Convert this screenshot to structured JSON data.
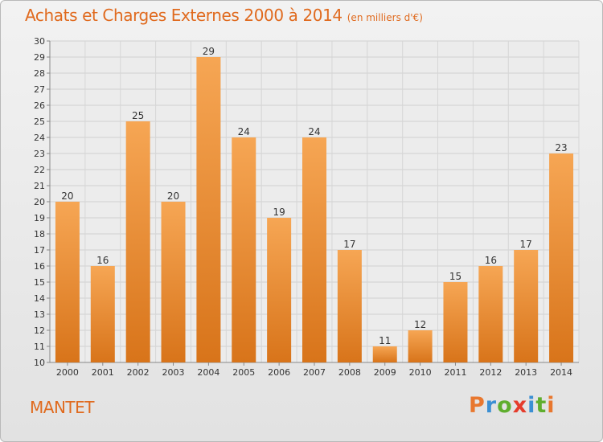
{
  "header": {
    "title": "Achats et Charges Externes 2000 à 2014",
    "subtitle": "(en milliers d'€)"
  },
  "footer": {
    "commune": "MANTET",
    "brand": "Proxiti"
  },
  "colors": {
    "bar_light": "#f6a654",
    "bar_dark": "#d8741a",
    "title": "#e06a1e",
    "brand_letters": [
      "#e8772e",
      "#3b8fd3",
      "#5fae2e",
      "#e53c2c",
      "#3b8fd3",
      "#5fae2e",
      "#e8772e"
    ]
  },
  "chart_data": {
    "type": "bar",
    "categories": [
      "2000",
      "2001",
      "2002",
      "2003",
      "2004",
      "2005",
      "2006",
      "2007",
      "2008",
      "2009",
      "2010",
      "2011",
      "2012",
      "2013",
      "2014"
    ],
    "values": [
      20,
      16,
      25,
      20,
      29,
      24,
      19,
      24,
      17,
      11,
      12,
      15,
      16,
      17,
      23
    ],
    "ylim": [
      10,
      30
    ],
    "yticks": [
      10,
      11,
      12,
      13,
      14,
      15,
      16,
      17,
      18,
      19,
      20,
      21,
      22,
      23,
      24,
      25,
      26,
      27,
      28,
      29,
      30
    ],
    "grid": true,
    "data_labels": true
  }
}
